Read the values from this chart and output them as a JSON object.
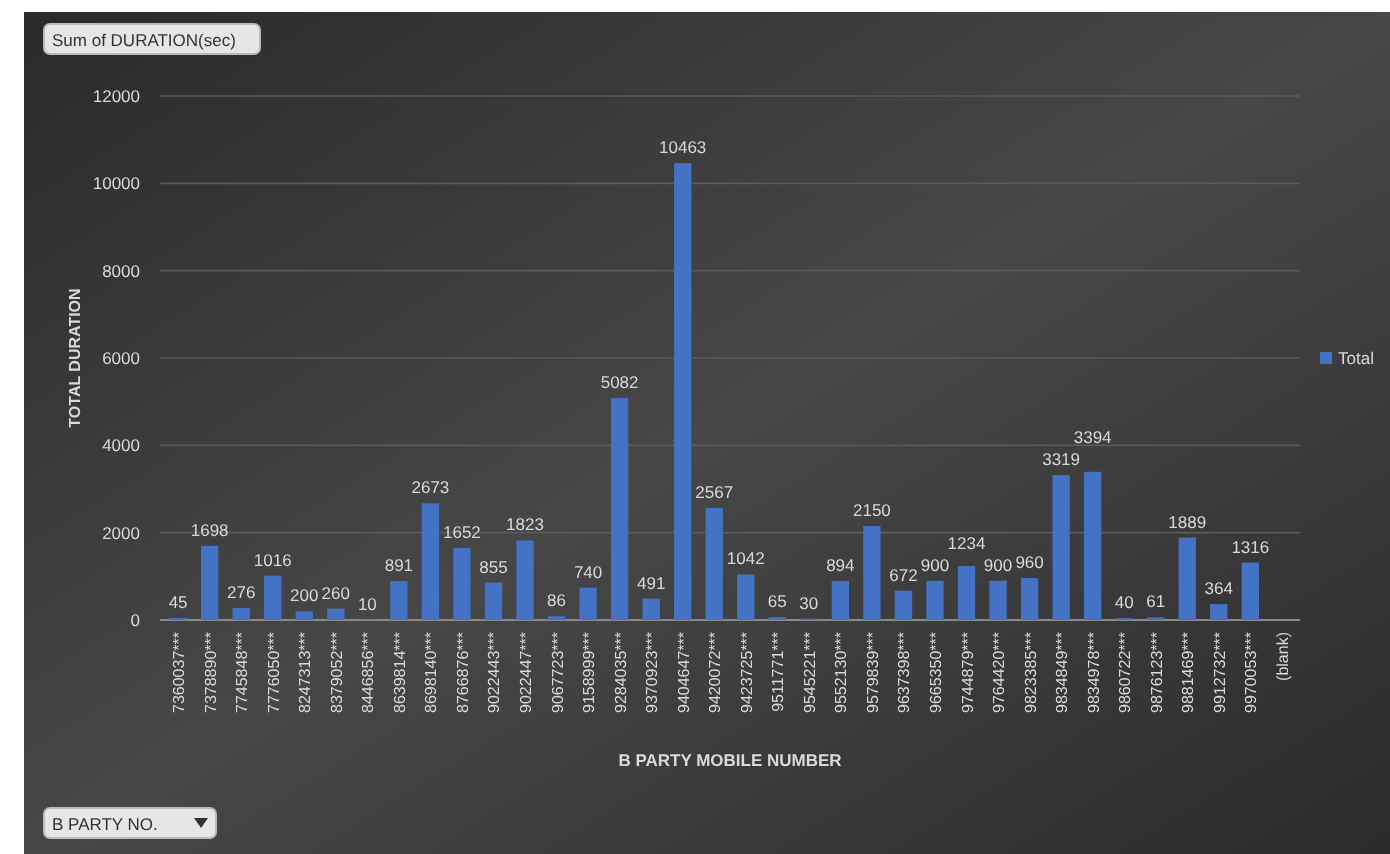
{
  "chart_data": {
    "type": "bar",
    "xlabel": "B PARTY MOBILE NUMBER",
    "ylabel": "TOTAL DURATION",
    "annotations": [
      "Sum of DURATION(sec)",
      "B PARTY NO."
    ],
    "categories": [
      "7360037***",
      "7378890***",
      "7745848***",
      "7776050***",
      "8247313***",
      "8379052***",
      "8446856***",
      "8639814***",
      "8698140***",
      "8766876***",
      "9022443***",
      "9022447***",
      "9067723***",
      "9158999***",
      "9284035***",
      "9370923***",
      "9404647***",
      "9420072***",
      "9423725***",
      "9511771***",
      "9545221***",
      "9552130***",
      "9579839***",
      "9637398***",
      "9665350***",
      "9744879***",
      "9764420***",
      "9823385***",
      "9834849***",
      "9834978***",
      "9860722***",
      "9876123***",
      "9881469***",
      "9912732***",
      "9970053***",
      "(blank)"
    ],
    "series": [
      {
        "name": "Total",
        "color": "#4472c4",
        "values": [
          45,
          1698,
          276,
          1016,
          200,
          260,
          10,
          891,
          2673,
          1652,
          855,
          1823,
          86,
          740,
          5082,
          491,
          10463,
          2567,
          1042,
          65,
          30,
          894,
          2150,
          672,
          900,
          1234,
          900,
          960,
          3319,
          3394,
          40,
          61,
          1889,
          364,
          1316,
          null
        ]
      }
    ],
    "ylim": [
      0,
      12000
    ],
    "yticks": [
      0,
      2000,
      4000,
      6000,
      8000,
      10000,
      12000
    ],
    "grid": "y",
    "legend": "right",
    "data_labels": true
  }
}
